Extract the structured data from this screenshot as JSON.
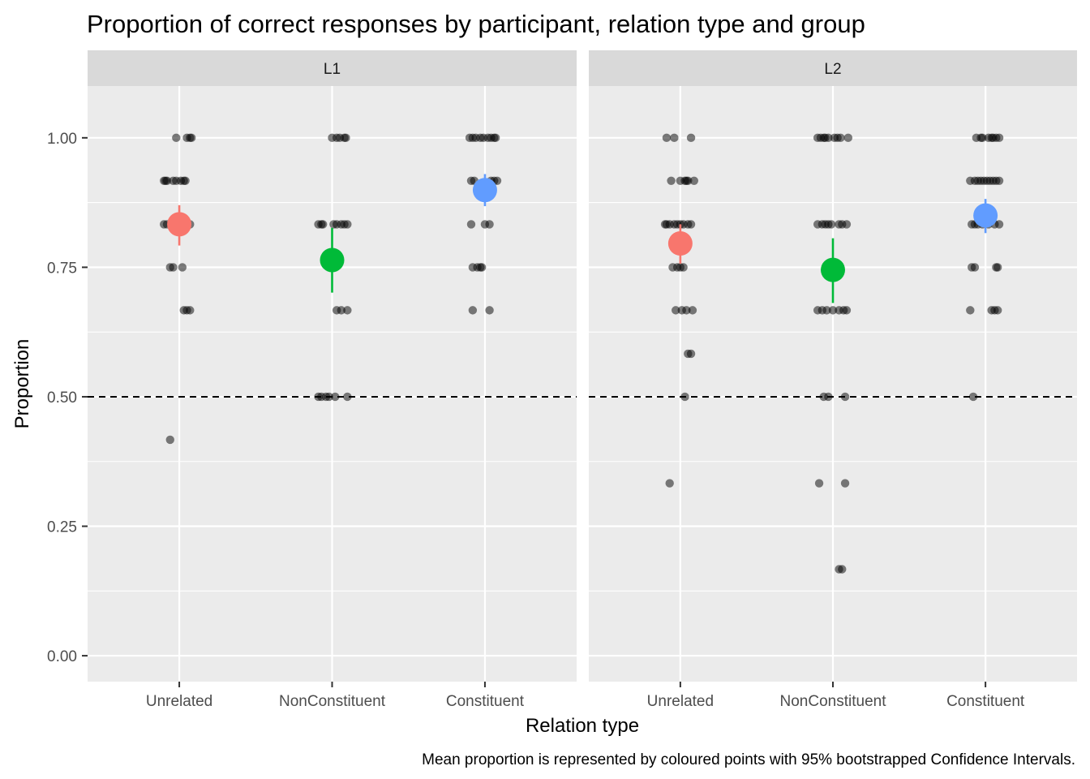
{
  "chart_data": {
    "type": "scatter",
    "title": "Proportion of correct responses by participant, relation type and group",
    "xlabel": "Relation type",
    "ylabel": "Proportion",
    "caption": "Mean proportion is represented by coloured points with 95% bootstrapped Confidence Intervals.",
    "categories": [
      "Unrelated",
      "NonConstituent",
      "Constituent"
    ],
    "ylim": [
      -0.05,
      1.1
    ],
    "yticks": [
      0,
      0.25,
      0.5,
      0.75,
      1
    ],
    "ytick_labels": [
      "0.00",
      "0.25",
      "0.50",
      "0.75",
      "1.00"
    ],
    "reference_line": 0.5,
    "colors": {
      "Unrelated": "#F8766D",
      "NonConstituent": "#00BA38",
      "Constituent": "#619CFF",
      "panel_bg": "#EBEBEB",
      "strip_bg": "#D9D9D9",
      "grid": "#FFFFFF"
    },
    "panels": [
      {
        "name": "L1",
        "groups": [
          {
            "category": "Unrelated",
            "mean": 0.833,
            "ci_low": 0.792,
            "ci_high": 0.87,
            "points": [
              {
                "jitter": -0.02,
                "y": 1.0
              },
              {
                "jitter": 0.05,
                "y": 1.0
              },
              {
                "jitter": 0.07,
                "y": 1.0
              },
              {
                "jitter": 0.08,
                "y": 1.0
              },
              {
                "jitter": -0.1,
                "y": 0.917
              },
              {
                "jitter": -0.09,
                "y": 0.917
              },
              {
                "jitter": -0.08,
                "y": 0.917
              },
              {
                "jitter": -0.04,
                "y": 0.917
              },
              {
                "jitter": -0.02,
                "y": 0.917
              },
              {
                "jitter": 0.01,
                "y": 0.917
              },
              {
                "jitter": 0.03,
                "y": 0.917
              },
              {
                "jitter": 0.04,
                "y": 0.917
              },
              {
                "jitter": -0.1,
                "y": 0.833
              },
              {
                "jitter": -0.08,
                "y": 0.833
              },
              {
                "jitter": -0.05,
                "y": 0.833
              },
              {
                "jitter": -0.01,
                "y": 0.833
              },
              {
                "jitter": 0.03,
                "y": 0.833
              },
              {
                "jitter": 0.07,
                "y": 0.833
              },
              {
                "jitter": -0.06,
                "y": 0.75
              },
              {
                "jitter": -0.04,
                "y": 0.75
              },
              {
                "jitter": 0.02,
                "y": 0.75
              },
              {
                "jitter": 0.03,
                "y": 0.667
              },
              {
                "jitter": 0.05,
                "y": 0.667
              },
              {
                "jitter": 0.07,
                "y": 0.667
              },
              {
                "jitter": -0.06,
                "y": 0.417
              }
            ]
          },
          {
            "category": "NonConstituent",
            "mean": 0.764,
            "ci_low": 0.701,
            "ci_high": 0.826,
            "points": [
              {
                "jitter": 0.0,
                "y": 1.0
              },
              {
                "jitter": 0.03,
                "y": 1.0
              },
              {
                "jitter": 0.05,
                "y": 1.0
              },
              {
                "jitter": 0.08,
                "y": 1.0
              },
              {
                "jitter": 0.09,
                "y": 1.0
              },
              {
                "jitter": -0.09,
                "y": 0.833
              },
              {
                "jitter": -0.07,
                "y": 0.833
              },
              {
                "jitter": -0.06,
                "y": 0.833
              },
              {
                "jitter": 0.01,
                "y": 0.833
              },
              {
                "jitter": 0.03,
                "y": 0.833
              },
              {
                "jitter": 0.06,
                "y": 0.833
              },
              {
                "jitter": 0.08,
                "y": 0.833
              },
              {
                "jitter": 0.1,
                "y": 0.833
              },
              {
                "jitter": 0.03,
                "y": 0.667
              },
              {
                "jitter": 0.06,
                "y": 0.667
              },
              {
                "jitter": 0.1,
                "y": 0.667
              },
              {
                "jitter": -0.09,
                "y": 0.5
              },
              {
                "jitter": -0.07,
                "y": 0.5
              },
              {
                "jitter": -0.04,
                "y": 0.5
              },
              {
                "jitter": -0.02,
                "y": 0.5
              },
              {
                "jitter": 0.02,
                "y": 0.5
              },
              {
                "jitter": 0.1,
                "y": 0.5
              }
            ]
          },
          {
            "category": "Constituent",
            "mean": 0.899,
            "ci_low": 0.868,
            "ci_high": 0.93,
            "points": [
              {
                "jitter": -0.1,
                "y": 1.0
              },
              {
                "jitter": -0.08,
                "y": 1.0
              },
              {
                "jitter": -0.06,
                "y": 1.0
              },
              {
                "jitter": -0.03,
                "y": 1.0
              },
              {
                "jitter": -0.01,
                "y": 1.0
              },
              {
                "jitter": 0.02,
                "y": 1.0
              },
              {
                "jitter": 0.04,
                "y": 1.0
              },
              {
                "jitter": 0.06,
                "y": 1.0
              },
              {
                "jitter": 0.07,
                "y": 1.0
              },
              {
                "jitter": -0.09,
                "y": 0.917
              },
              {
                "jitter": -0.07,
                "y": 0.917
              },
              {
                "jitter": 0.04,
                "y": 0.917
              },
              {
                "jitter": 0.06,
                "y": 0.917
              },
              {
                "jitter": 0.08,
                "y": 0.917
              },
              {
                "jitter": -0.09,
                "y": 0.833
              },
              {
                "jitter": 0.0,
                "y": 0.833
              },
              {
                "jitter": 0.03,
                "y": 0.833
              },
              {
                "jitter": -0.08,
                "y": 0.75
              },
              {
                "jitter": -0.05,
                "y": 0.75
              },
              {
                "jitter": -0.03,
                "y": 0.75
              },
              {
                "jitter": -0.02,
                "y": 0.75
              },
              {
                "jitter": -0.08,
                "y": 0.667
              },
              {
                "jitter": 0.03,
                "y": 0.667
              }
            ]
          }
        ]
      },
      {
        "name": "L2",
        "groups": [
          {
            "category": "Unrelated",
            "mean": 0.796,
            "ci_low": 0.757,
            "ci_high": 0.833,
            "points": [
              {
                "jitter": -0.09,
                "y": 1.0
              },
              {
                "jitter": -0.04,
                "y": 1.0
              },
              {
                "jitter": 0.07,
                "y": 1.0
              },
              {
                "jitter": -0.06,
                "y": 0.917
              },
              {
                "jitter": 0.0,
                "y": 0.917
              },
              {
                "jitter": 0.03,
                "y": 0.917
              },
              {
                "jitter": 0.04,
                "y": 0.917
              },
              {
                "jitter": 0.05,
                "y": 0.917
              },
              {
                "jitter": 0.09,
                "y": 0.917
              },
              {
                "jitter": -0.1,
                "y": 0.833
              },
              {
                "jitter": -0.09,
                "y": 0.833
              },
              {
                "jitter": -0.07,
                "y": 0.833
              },
              {
                "jitter": -0.04,
                "y": 0.833
              },
              {
                "jitter": -0.02,
                "y": 0.833
              },
              {
                "jitter": 0.0,
                "y": 0.833
              },
              {
                "jitter": 0.02,
                "y": 0.833
              },
              {
                "jitter": 0.05,
                "y": 0.833
              },
              {
                "jitter": 0.07,
                "y": 0.833
              },
              {
                "jitter": -0.05,
                "y": 0.75
              },
              {
                "jitter": -0.02,
                "y": 0.75
              },
              {
                "jitter": 0.0,
                "y": 0.75
              },
              {
                "jitter": 0.02,
                "y": 0.75
              },
              {
                "jitter": -0.03,
                "y": 0.667
              },
              {
                "jitter": 0.01,
                "y": 0.667
              },
              {
                "jitter": 0.04,
                "y": 0.667
              },
              {
                "jitter": 0.08,
                "y": 0.667
              },
              {
                "jitter": 0.05,
                "y": 0.583
              },
              {
                "jitter": 0.07,
                "y": 0.583
              },
              {
                "jitter": 0.03,
                "y": 0.5
              },
              {
                "jitter": -0.07,
                "y": 0.333
              }
            ]
          },
          {
            "category": "NonConstituent",
            "mean": 0.745,
            "ci_low": 0.681,
            "ci_high": 0.806,
            "points": [
              {
                "jitter": -0.1,
                "y": 1.0
              },
              {
                "jitter": -0.08,
                "y": 1.0
              },
              {
                "jitter": -0.06,
                "y": 1.0
              },
              {
                "jitter": -0.05,
                "y": 1.0
              },
              {
                "jitter": -0.03,
                "y": 1.0
              },
              {
                "jitter": 0.01,
                "y": 1.0
              },
              {
                "jitter": 0.03,
                "y": 1.0
              },
              {
                "jitter": 0.05,
                "y": 1.0
              },
              {
                "jitter": 0.1,
                "y": 1.0
              },
              {
                "jitter": -0.1,
                "y": 0.833
              },
              {
                "jitter": -0.07,
                "y": 0.833
              },
              {
                "jitter": -0.05,
                "y": 0.833
              },
              {
                "jitter": -0.03,
                "y": 0.833
              },
              {
                "jitter": -0.01,
                "y": 0.833
              },
              {
                "jitter": 0.04,
                "y": 0.833
              },
              {
                "jitter": 0.06,
                "y": 0.833
              },
              {
                "jitter": 0.09,
                "y": 0.833
              },
              {
                "jitter": -0.1,
                "y": 0.667
              },
              {
                "jitter": -0.07,
                "y": 0.667
              },
              {
                "jitter": -0.04,
                "y": 0.667
              },
              {
                "jitter": 0.0,
                "y": 0.667
              },
              {
                "jitter": 0.04,
                "y": 0.667
              },
              {
                "jitter": 0.07,
                "y": 0.667
              },
              {
                "jitter": 0.09,
                "y": 0.667
              },
              {
                "jitter": -0.06,
                "y": 0.5
              },
              {
                "jitter": -0.03,
                "y": 0.5
              },
              {
                "jitter": 0.08,
                "y": 0.5
              },
              {
                "jitter": -0.09,
                "y": 0.333
              },
              {
                "jitter": 0.08,
                "y": 0.333
              },
              {
                "jitter": 0.04,
                "y": 0.167
              },
              {
                "jitter": 0.06,
                "y": 0.167
              }
            ]
          },
          {
            "category": "Constituent",
            "mean": 0.85,
            "ci_low": 0.816,
            "ci_high": 0.882,
            "points": [
              {
                "jitter": -0.06,
                "y": 1.0
              },
              {
                "jitter": -0.03,
                "y": 1.0
              },
              {
                "jitter": -0.02,
                "y": 1.0
              },
              {
                "jitter": 0.02,
                "y": 1.0
              },
              {
                "jitter": 0.04,
                "y": 1.0
              },
              {
                "jitter": 0.05,
                "y": 1.0
              },
              {
                "jitter": 0.07,
                "y": 1.0
              },
              {
                "jitter": 0.09,
                "y": 1.0
              },
              {
                "jitter": -0.1,
                "y": 0.917
              },
              {
                "jitter": -0.07,
                "y": 0.917
              },
              {
                "jitter": -0.05,
                "y": 0.917
              },
              {
                "jitter": -0.03,
                "y": 0.917
              },
              {
                "jitter": -0.01,
                "y": 0.917
              },
              {
                "jitter": 0.01,
                "y": 0.917
              },
              {
                "jitter": 0.03,
                "y": 0.917
              },
              {
                "jitter": 0.05,
                "y": 0.917
              },
              {
                "jitter": 0.07,
                "y": 0.917
              },
              {
                "jitter": 0.09,
                "y": 0.917
              },
              {
                "jitter": -0.09,
                "y": 0.833
              },
              {
                "jitter": -0.07,
                "y": 0.833
              },
              {
                "jitter": -0.05,
                "y": 0.833
              },
              {
                "jitter": -0.02,
                "y": 0.833
              },
              {
                "jitter": 0.02,
                "y": 0.833
              },
              {
                "jitter": 0.06,
                "y": 0.833
              },
              {
                "jitter": 0.09,
                "y": 0.833
              },
              {
                "jitter": -0.09,
                "y": 0.75
              },
              {
                "jitter": -0.07,
                "y": 0.75
              },
              {
                "jitter": 0.07,
                "y": 0.75
              },
              {
                "jitter": 0.08,
                "y": 0.75
              },
              {
                "jitter": -0.1,
                "y": 0.667
              },
              {
                "jitter": 0.04,
                "y": 0.667
              },
              {
                "jitter": 0.06,
                "y": 0.667
              },
              {
                "jitter": 0.08,
                "y": 0.667
              },
              {
                "jitter": -0.08,
                "y": 0.5
              }
            ]
          }
        ]
      }
    ]
  }
}
